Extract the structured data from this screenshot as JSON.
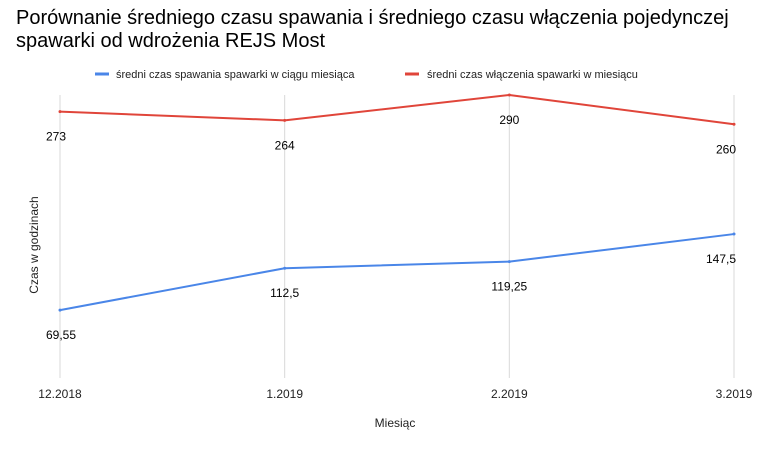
{
  "chart_data": {
    "type": "line",
    "title": "Porównanie średniego czasu spawania i średniego czasu włączenia pojedynczej spawarki od wdrożenia REJS Most",
    "xlabel": "Miesiąc",
    "ylabel": "Czas w godzinach",
    "categories": [
      "12.2018",
      "1.2019",
      "2.2019",
      "3.2019"
    ],
    "ylim": [
      0,
      290
    ],
    "grid": "vertical",
    "legend_position": "top",
    "series": [
      {
        "name": "średni czas spawania spawarki w ciągu miesiąca",
        "color": "#4a86e8",
        "values": [
          69.55,
          112.5,
          119.25,
          147.5
        ],
        "labels": [
          "69,55",
          "112,5",
          "119,25",
          "147,5"
        ]
      },
      {
        "name": "średni czas włączenia spawarki w miesiącu",
        "color": "#e0453a",
        "values": [
          273,
          264,
          290,
          260
        ],
        "labels": [
          "273",
          "264",
          "290",
          "260"
        ]
      }
    ]
  }
}
